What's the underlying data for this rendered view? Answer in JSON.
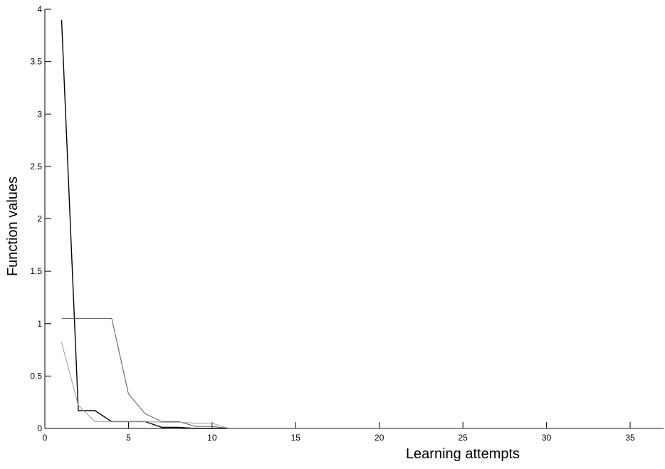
{
  "chart_data": {
    "type": "line",
    "title": "",
    "xlabel": "Learning attempts",
    "ylabel": "Function values",
    "xlim": [
      0,
      37
    ],
    "ylim": [
      0,
      4
    ],
    "xticks": [
      0,
      5,
      10,
      15,
      20,
      25,
      30,
      35
    ],
    "xtick_labels": [
      "0",
      "5",
      "10",
      "15",
      "20",
      "25",
      "30",
      "35"
    ],
    "yticks": [
      0,
      0.5,
      1,
      1.5,
      2,
      2.5,
      3,
      3.5,
      4
    ],
    "ytick_labels": [
      "0",
      "0.5",
      "1",
      "1.5",
      "2",
      "2.5",
      "3",
      "3.5",
      "4"
    ],
    "grid": false,
    "series": [
      {
        "color": "#000000",
        "x": [
          1,
          2,
          3,
          4,
          5,
          6,
          7,
          8,
          9,
          10,
          37
        ],
        "y": [
          3.9,
          0.17,
          0.17,
          0.065,
          0.065,
          0.065,
          0.01,
          0.01,
          0.0,
          0.0,
          0.0
        ]
      },
      {
        "color": "#555555",
        "x": [
          1,
          2,
          3,
          4,
          5,
          6,
          7,
          8,
          9,
          10,
          11,
          12,
          37
        ],
        "y": [
          1.05,
          1.05,
          1.05,
          1.05,
          0.33,
          0.14,
          0.065,
          0.065,
          0.02,
          0.02,
          0.0,
          0.0,
          0.0
        ]
      },
      {
        "color": "#999999",
        "x": [
          1,
          2,
          3,
          4,
          5,
          6,
          7,
          8,
          9,
          10,
          11,
          37
        ],
        "y": [
          0.82,
          0.22,
          0.065,
          0.065,
          0.065,
          0.065,
          0.06,
          0.06,
          0.05,
          0.05,
          0.0,
          0.0
        ]
      }
    ]
  }
}
